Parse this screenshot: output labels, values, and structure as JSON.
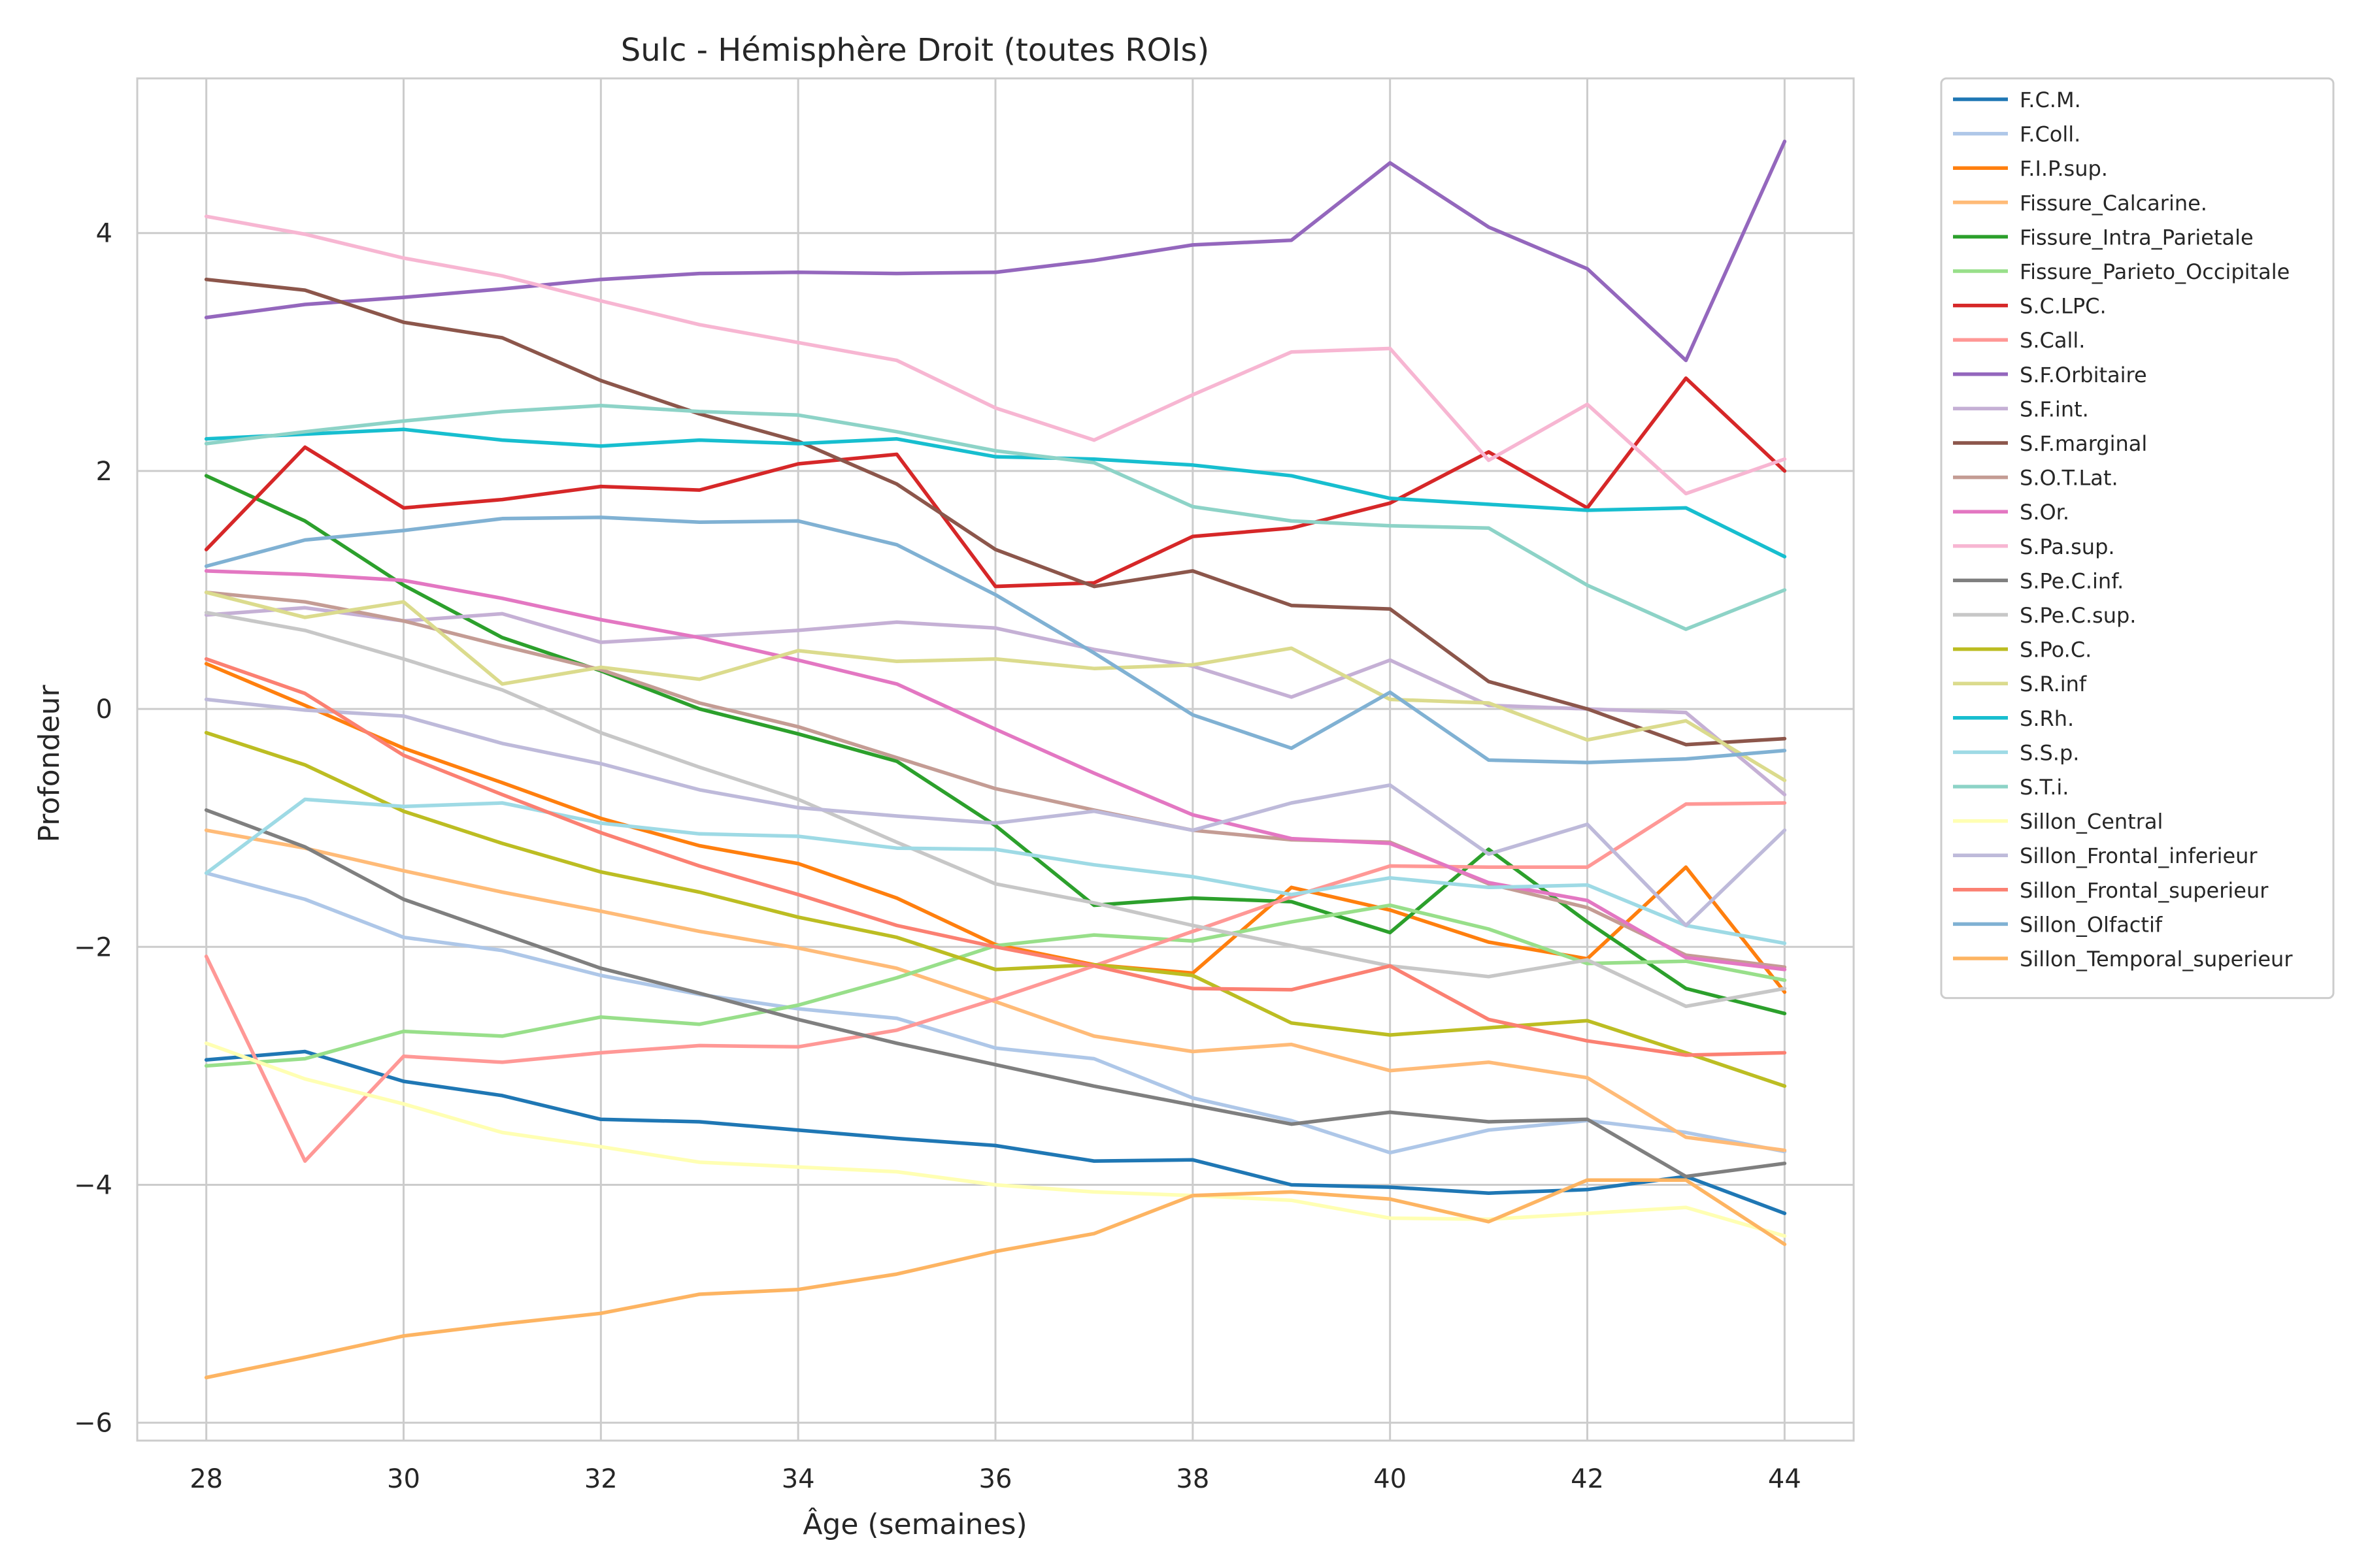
{
  "chart_data": {
    "type": "line",
    "title": "Sulc - Hémisphère Droit (toutes ROIs)",
    "xlabel": "Âge (semaines)",
    "ylabel": "Profondeur",
    "xlim": [
      27.3,
      44.7
    ],
    "ylim": [
      -6.15,
      5.3
    ],
    "xticks": [
      28,
      30,
      32,
      34,
      36,
      38,
      40,
      42,
      44
    ],
    "yticks": [
      -6,
      -4,
      -2,
      0,
      2,
      4
    ],
    "ytick_labels": [
      "−6",
      "−4",
      "−2",
      "0",
      "2",
      "4"
    ],
    "grid": true,
    "legend_position": "outside-right",
    "x": [
      28,
      29,
      30,
      31,
      32,
      33,
      34,
      35,
      36,
      37,
      38,
      39,
      40,
      41,
      42,
      43,
      44
    ],
    "series": [
      {
        "name": "F.C.M.",
        "color": "#1f77b4",
        "values": [
          -2.95,
          -2.88,
          -3.13,
          -3.25,
          -3.45,
          -3.47,
          -3.54,
          -3.61,
          -3.67,
          -3.8,
          -3.79,
          -4.0,
          -4.02,
          -4.07,
          -4.04,
          -3.93,
          -4.24
        ]
      },
      {
        "name": "F.Coll.",
        "color": "#aec7e8",
        "values": [
          -1.38,
          -1.6,
          -1.92,
          -2.03,
          -2.24,
          -2.4,
          -2.52,
          -2.6,
          -2.85,
          -2.94,
          -3.27,
          -3.46,
          -3.73,
          -3.54,
          -3.46,
          -3.56,
          -3.72
        ]
      },
      {
        "name": "F.I.P.sup.",
        "color": "#ff7f0e",
        "values": [
          0.38,
          0.03,
          -0.33,
          -0.62,
          -0.92,
          -1.15,
          -1.3,
          -1.59,
          -1.98,
          -2.15,
          -2.22,
          -1.5,
          -1.69,
          -1.96,
          -2.1,
          -1.33,
          -2.38
        ]
      },
      {
        "name": "Fissure_Calcarine.",
        "color": "#ffbb78",
        "values": [
          -1.02,
          -1.17,
          -1.36,
          -1.54,
          -1.7,
          -1.87,
          -2.01,
          -2.18,
          -2.46,
          -2.75,
          -2.88,
          -2.82,
          -3.04,
          -2.97,
          -3.1,
          -3.6,
          -3.71
        ]
      },
      {
        "name": "Fissure_Intra_Parietale",
        "color": "#2ca02c",
        "values": [
          1.96,
          1.58,
          1.04,
          0.6,
          0.32,
          0.0,
          -0.21,
          -0.44,
          -0.98,
          -1.65,
          -1.59,
          -1.62,
          -1.88,
          -1.18,
          -1.79,
          -2.35,
          -2.56
        ]
      },
      {
        "name": "Fissure_Parieto_Occipitale",
        "color": "#98df8a",
        "values": [
          -3.0,
          -2.94,
          -2.71,
          -2.75,
          -2.59,
          -2.65,
          -2.49,
          -2.26,
          -1.99,
          -1.9,
          -1.95,
          -1.79,
          -1.65,
          -1.85,
          -2.14,
          -2.12,
          -2.28
        ]
      },
      {
        "name": "S.C.LPC.",
        "color": "#d62728",
        "values": [
          1.34,
          2.2,
          1.69,
          1.76,
          1.87,
          1.84,
          2.06,
          2.14,
          1.03,
          1.06,
          1.45,
          1.52,
          1.73,
          2.16,
          1.69,
          2.78,
          2.0
        ]
      },
      {
        "name": "S.Call.",
        "color": "#ff9896",
        "values": [
          -2.08,
          -3.8,
          -2.92,
          -2.97,
          -2.89,
          -2.83,
          -2.84,
          -2.7,
          -2.44,
          -2.16,
          -1.87,
          -1.58,
          -1.32,
          -1.33,
          -1.33,
          -0.8,
          -0.79
        ]
      },
      {
        "name": "S.F.Orbitaire",
        "color": "#9467bd",
        "values": [
          3.29,
          3.4,
          3.46,
          3.53,
          3.61,
          3.66,
          3.67,
          3.66,
          3.67,
          3.77,
          3.9,
          3.94,
          4.59,
          4.05,
          3.7,
          2.93,
          4.77
        ]
      },
      {
        "name": "S.F.int.",
        "color": "#c5b0d5",
        "values": [
          0.79,
          0.85,
          0.74,
          0.8,
          0.56,
          0.61,
          0.66,
          0.73,
          0.68,
          0.5,
          0.36,
          0.1,
          0.41,
          0.03,
          0.0,
          -0.03,
          -0.72
        ]
      },
      {
        "name": "S.F.marginal",
        "color": "#8c564b",
        "values": [
          3.61,
          3.52,
          3.25,
          3.12,
          2.76,
          2.48,
          2.25,
          1.89,
          1.34,
          1.03,
          1.16,
          0.87,
          0.84,
          0.23,
          0.0,
          -0.3,
          -0.25
        ]
      },
      {
        "name": "S.O.T.Lat.",
        "color": "#c49c94",
        "values": [
          0.98,
          0.9,
          0.74,
          0.53,
          0.33,
          0.05,
          -0.15,
          -0.41,
          -0.67,
          -0.85,
          -1.02,
          -1.1,
          -1.12,
          -1.47,
          -1.67,
          -2.07,
          -2.17
        ]
      },
      {
        "name": "S.Or.",
        "color": "#e377c2",
        "values": [
          1.16,
          1.13,
          1.08,
          0.93,
          0.75,
          0.6,
          0.41,
          0.21,
          -0.17,
          -0.54,
          -0.89,
          -1.09,
          -1.13,
          -1.46,
          -1.61,
          -2.09,
          -2.19
        ]
      },
      {
        "name": "S.Pa.sup.",
        "color": "#f7b6d2",
        "values": [
          4.14,
          3.99,
          3.79,
          3.64,
          3.43,
          3.23,
          3.08,
          2.93,
          2.53,
          2.26,
          2.64,
          3.0,
          3.03,
          2.09,
          2.56,
          1.81,
          2.1
        ]
      },
      {
        "name": "S.Pe.C.inf.",
        "color": "#7f7f7f",
        "values": [
          -0.85,
          -1.16,
          -1.6,
          -1.89,
          -2.18,
          -2.39,
          -2.61,
          -2.81,
          -2.99,
          -3.17,
          -3.33,
          -3.49,
          -3.39,
          -3.47,
          -3.45,
          -3.93,
          -3.82
        ]
      },
      {
        "name": "S.Pe.C.sup.",
        "color": "#c7c7c7",
        "values": [
          0.81,
          0.66,
          0.42,
          0.16,
          -0.2,
          -0.49,
          -0.76,
          -1.12,
          -1.47,
          -1.63,
          -1.82,
          -1.99,
          -2.16,
          -2.25,
          -2.11,
          -2.5,
          -2.35
        ]
      },
      {
        "name": "S.Po.C.",
        "color": "#bcbd22",
        "values": [
          -0.2,
          -0.47,
          -0.86,
          -1.13,
          -1.37,
          -1.54,
          -1.75,
          -1.92,
          -2.19,
          -2.15,
          -2.24,
          -2.64,
          -2.74,
          -2.68,
          -2.62,
          -2.89,
          -3.17
        ]
      },
      {
        "name": "S.R.inf",
        "color": "#dbdb8d",
        "values": [
          0.98,
          0.77,
          0.9,
          0.21,
          0.35,
          0.25,
          0.49,
          0.4,
          0.42,
          0.34,
          0.37,
          0.51,
          0.08,
          0.05,
          -0.26,
          -0.1,
          -0.6
        ]
      },
      {
        "name": "S.Rh.",
        "color": "#17becf",
        "values": [
          2.27,
          2.31,
          2.35,
          2.26,
          2.21,
          2.26,
          2.23,
          2.27,
          2.12,
          2.1,
          2.05,
          1.96,
          1.77,
          1.72,
          1.67,
          1.69,
          1.28
        ]
      },
      {
        "name": "S.S.p.",
        "color": "#9edae5",
        "values": [
          -1.38,
          -0.76,
          -0.82,
          -0.79,
          -0.96,
          -1.05,
          -1.07,
          -1.17,
          -1.18,
          -1.31,
          -1.41,
          -1.56,
          -1.42,
          -1.5,
          -1.48,
          -1.82,
          -1.97
        ]
      },
      {
        "name": "S.T.i.",
        "color": "#8dd3c7",
        "values": [
          2.23,
          2.33,
          2.42,
          2.5,
          2.55,
          2.5,
          2.47,
          2.33,
          2.17,
          2.07,
          1.7,
          1.58,
          1.54,
          1.52,
          1.04,
          0.67,
          1.0
        ]
      },
      {
        "name": "Sillon_Central",
        "color": "#ffffb3",
        "values": [
          -2.81,
          -3.11,
          -3.32,
          -3.56,
          -3.68,
          -3.81,
          -3.85,
          -3.89,
          -4.0,
          -4.06,
          -4.09,
          -4.13,
          -4.28,
          -4.29,
          -4.24,
          -4.19,
          -4.43
        ]
      },
      {
        "name": "Sillon_Frontal_inferieur",
        "color": "#bebada",
        "values": [
          0.08,
          -0.01,
          -0.06,
          -0.29,
          -0.46,
          -0.68,
          -0.83,
          -0.9,
          -0.96,
          -0.86,
          -1.02,
          -0.79,
          -0.64,
          -1.22,
          -0.97,
          -1.82,
          -1.02
        ]
      },
      {
        "name": "Sillon_Frontal_superieur",
        "color": "#fb8072",
        "values": [
          0.42,
          0.13,
          -0.39,
          -0.72,
          -1.04,
          -1.32,
          -1.56,
          -1.82,
          -2.0,
          -2.16,
          -2.35,
          -2.36,
          -2.16,
          -2.61,
          -2.79,
          -2.91,
          -2.89
        ]
      },
      {
        "name": "Sillon_Olfactif",
        "color": "#80b1d3",
        "values": [
          1.2,
          1.42,
          1.5,
          1.6,
          1.61,
          1.57,
          1.58,
          1.38,
          0.96,
          0.47,
          -0.05,
          -0.33,
          0.14,
          -0.43,
          -0.45,
          -0.42,
          -0.35
        ]
      },
      {
        "name": "Sillon_Temporal_superieur",
        "color": "#fdb462",
        "values": [
          -5.62,
          -5.45,
          -5.27,
          -5.17,
          -5.08,
          -4.92,
          -4.88,
          -4.75,
          -4.56,
          -4.41,
          -4.09,
          -4.06,
          -4.12,
          -4.31,
          -3.96,
          -3.96,
          -4.5
        ]
      }
    ]
  }
}
